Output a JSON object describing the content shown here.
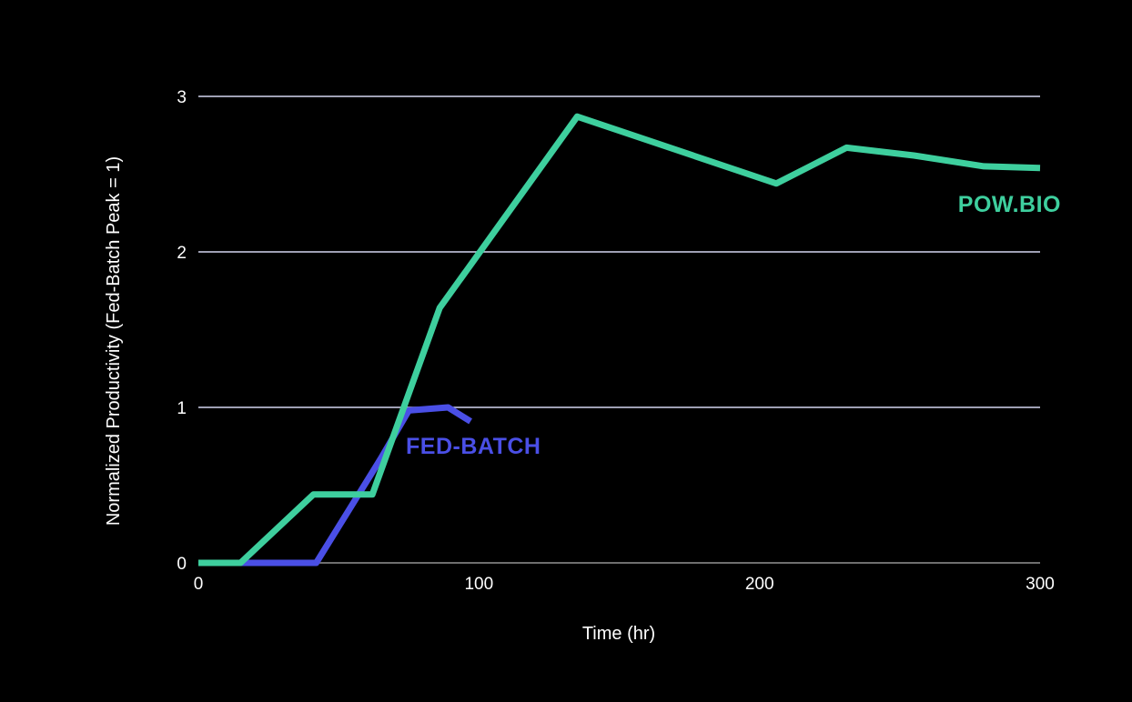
{
  "chart_data": {
    "type": "line",
    "title": "",
    "xlabel": "Time (hr)",
    "ylabel": "Normalized Productivity (Fed-Batch Peak = 1)",
    "xlim": [
      0,
      300
    ],
    "ylim": [
      0,
      3
    ],
    "xticks": [
      0,
      100,
      200,
      300
    ],
    "yticks": [
      0,
      1,
      2,
      3
    ],
    "grid": "horizontal",
    "legend": "inline labels",
    "series": [
      {
        "name": "FED-BATCH",
        "color": "#4a4fe6",
        "x": [
          0,
          15,
          42,
          65,
          75,
          89,
          97
        ],
        "y": [
          0,
          0,
          0,
          0.67,
          0.98,
          1.0,
          0.91
        ]
      },
      {
        "name": "POW.BIO",
        "color": "#3ecf9e",
        "x": [
          0,
          15,
          41,
          62,
          86,
          135,
          206,
          231,
          255,
          280,
          300
        ],
        "y": [
          0,
          0,
          0.44,
          0.44,
          1.64,
          2.87,
          2.44,
          2.67,
          2.62,
          2.55,
          2.54
        ]
      }
    ]
  }
}
